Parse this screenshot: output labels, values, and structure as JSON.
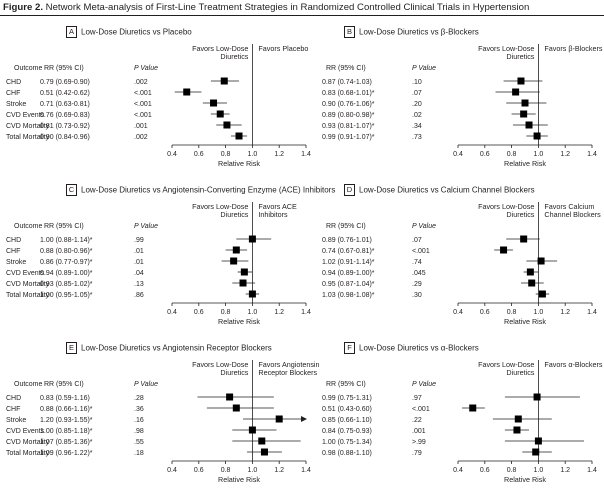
{
  "figure": {
    "label": "Figure 2.",
    "title": "Network Meta-analysis of First-Line Treatment Strategies in Randomized Controlled Clinical Trials in Hypertension"
  },
  "colors": {
    "ink": "#231f20",
    "marker": "#000000"
  },
  "chart_data": [
    {
      "type": "forest",
      "panel": "A",
      "title": "Low-Dose Diuretics vs Placebo",
      "favors_left": "Favors Low-Dose Diuretics",
      "favors_right": "Favors Placebo",
      "show_outcome_column": true,
      "outcome_header": "Outcome",
      "rr_header": "RR (95% CI)",
      "p_header": "P Value",
      "xlabel": "Relative Risk",
      "xlim": [
        0.4,
        1.4
      ],
      "xticks": [
        "0.4",
        "0.6",
        "0.8",
        "1.0",
        "1.2",
        "1.4"
      ],
      "reference_line": 1.0,
      "rows": [
        {
          "outcome": "CHD",
          "rr_text": "0.79 (0.69-0.90)",
          "p_text": ".002",
          "rr": 0.79,
          "lo": 0.69,
          "hi": 0.9
        },
        {
          "outcome": "CHF",
          "rr_text": "0.51 (0.42-0.62)",
          "p_text": "<.001",
          "rr": 0.51,
          "lo": 0.42,
          "hi": 0.62
        },
        {
          "outcome": "Stroke",
          "rr_text": "0.71 (0.63-0.81)",
          "p_text": "<.001",
          "rr": 0.71,
          "lo": 0.63,
          "hi": 0.81
        },
        {
          "outcome": "CVD Events",
          "rr_text": "0.76 (0.69-0.83)",
          "p_text": "<.001",
          "rr": 0.76,
          "lo": 0.69,
          "hi": 0.83
        },
        {
          "outcome": "CVD Mortality",
          "rr_text": "0.81 (0.73-0.92)",
          "p_text": ".001",
          "rr": 0.81,
          "lo": 0.73,
          "hi": 0.92
        },
        {
          "outcome": "Total Mortality",
          "rr_text": "0.90 (0.84-0.96)",
          "p_text": ".002",
          "rr": 0.9,
          "lo": 0.84,
          "hi": 0.96
        }
      ]
    },
    {
      "type": "forest",
      "panel": "B",
      "title": "Low-Dose Diuretics vs β-Blockers",
      "favors_left": "Favors Low-Dose Diuretics",
      "favors_right": "Favors β-Blockers",
      "show_outcome_column": false,
      "outcome_header": "",
      "rr_header": "RR (95% CI)",
      "p_header": "P Value",
      "xlabel": "Relative Risk",
      "xlim": [
        0.4,
        1.4
      ],
      "xticks": [
        "0.4",
        "0.6",
        "0.8",
        "1.0",
        "1.2",
        "1.4"
      ],
      "reference_line": 1.0,
      "rows": [
        {
          "outcome": "CHD",
          "rr_text": "0.87 (0.74-1.03)",
          "p_text": ".10",
          "rr": 0.87,
          "lo": 0.74,
          "hi": 1.03
        },
        {
          "outcome": "CHF",
          "rr_text": "0.83 (0.68-1.01)*",
          "p_text": ".07",
          "rr": 0.83,
          "lo": 0.68,
          "hi": 1.01
        },
        {
          "outcome": "Stroke",
          "rr_text": "0.90 (0.76-1.06)*",
          "p_text": ".20",
          "rr": 0.9,
          "lo": 0.76,
          "hi": 1.06
        },
        {
          "outcome": "CVD Events",
          "rr_text": "0.89 (0.80-0.98)*",
          "p_text": ".02",
          "rr": 0.89,
          "lo": 0.8,
          "hi": 0.98
        },
        {
          "outcome": "CVD Mortality",
          "rr_text": "0.93 (0.81-1.07)*",
          "p_text": ".34",
          "rr": 0.93,
          "lo": 0.81,
          "hi": 1.07
        },
        {
          "outcome": "Total Mortality",
          "rr_text": "0.99 (0.91-1.07)*",
          "p_text": ".73",
          "rr": 0.99,
          "lo": 0.91,
          "hi": 1.07
        }
      ]
    },
    {
      "type": "forest",
      "panel": "C",
      "title": "Low-Dose Diuretics vs Angiotensin-Converting Enzyme (ACE) Inhibitors",
      "favors_left": "Favors Low-Dose Diuretics",
      "favors_right": "Favors ACE Inhibitors",
      "show_outcome_column": true,
      "outcome_header": "Outcome",
      "rr_header": "RR (95% CI)",
      "p_header": "P Value",
      "xlabel": "Relative Risk",
      "xlim": [
        0.4,
        1.4
      ],
      "xticks": [
        "0.4",
        "0.6",
        "0.8",
        "1.0",
        "1.2",
        "1.4"
      ],
      "reference_line": 1.0,
      "rows": [
        {
          "outcome": "CHD",
          "rr_text": "1.00 (0.88-1.14)*",
          "p_text": ".99",
          "rr": 1.0,
          "lo": 0.88,
          "hi": 1.14
        },
        {
          "outcome": "CHF",
          "rr_text": "0.88 (0.80-0.96)*",
          "p_text": ".01",
          "rr": 0.88,
          "lo": 0.8,
          "hi": 0.96
        },
        {
          "outcome": "Stroke",
          "rr_text": "0.86 (0.77-0.97)*",
          "p_text": ".01",
          "rr": 0.86,
          "lo": 0.77,
          "hi": 0.97
        },
        {
          "outcome": "CVD Events",
          "rr_text": "0.94 (0.89-1.00)*",
          "p_text": ".04",
          "rr": 0.94,
          "lo": 0.89,
          "hi": 1.0
        },
        {
          "outcome": "CVD Mortality",
          "rr_text": "0.93 (0.85-1.02)*",
          "p_text": ".13",
          "rr": 0.93,
          "lo": 0.85,
          "hi": 1.02
        },
        {
          "outcome": "Total Mortality",
          "rr_text": "1.00 (0.95-1.05)*",
          "p_text": ".86",
          "rr": 1.0,
          "lo": 0.95,
          "hi": 1.05
        }
      ]
    },
    {
      "type": "forest",
      "panel": "D",
      "title": "Low-Dose Diuretics vs Calcium Channel Blockers",
      "favors_left": "Favors Low-Dose Diuretics",
      "favors_right": "Favors Calcium Channel Blockers",
      "show_outcome_column": false,
      "outcome_header": "",
      "rr_header": "RR (95% CI)",
      "p_header": "P Value",
      "xlabel": "Relative Risk",
      "xlim": [
        0.4,
        1.4
      ],
      "xticks": [
        "0.4",
        "0.6",
        "0.8",
        "1.0",
        "1.2",
        "1.4"
      ],
      "reference_line": 1.0,
      "rows": [
        {
          "outcome": "CHD",
          "rr_text": "0.89 (0.76-1.01)",
          "p_text": ".07",
          "rr": 0.89,
          "lo": 0.76,
          "hi": 1.01
        },
        {
          "outcome": "CHF",
          "rr_text": "0.74 (0.67-0.81)*",
          "p_text": "<.001",
          "rr": 0.74,
          "lo": 0.67,
          "hi": 0.81
        },
        {
          "outcome": "Stroke",
          "rr_text": "1.02 (0.91-1.14)*",
          "p_text": ".74",
          "rr": 1.02,
          "lo": 0.91,
          "hi": 1.14
        },
        {
          "outcome": "CVD Events",
          "rr_text": "0.94 (0.89-1.00)*",
          "p_text": ".045",
          "rr": 0.94,
          "lo": 0.89,
          "hi": 1.0
        },
        {
          "outcome": "CVD Mortality",
          "rr_text": "0.95 (0.87-1.04)*",
          "p_text": ".29",
          "rr": 0.95,
          "lo": 0.87,
          "hi": 1.04
        },
        {
          "outcome": "Total Mortality",
          "rr_text": "1.03 (0.98-1.08)*",
          "p_text": ".30",
          "rr": 1.03,
          "lo": 0.98,
          "hi": 1.08
        }
      ]
    },
    {
      "type": "forest",
      "panel": "E",
      "title": "Low-Dose Diuretics vs Angiotensin Receptor Blockers",
      "favors_left": "Favors Low-Dose Diuretics",
      "favors_right": "Favors Angiotensin Receptor Blockers",
      "show_outcome_column": true,
      "outcome_header": "Outcome",
      "rr_header": "RR (95% CI)",
      "p_header": "P Value",
      "xlabel": "Relative Risk",
      "xlim": [
        0.4,
        1.4
      ],
      "xticks": [
        "0.4",
        "0.6",
        "0.8",
        "1.0",
        "1.2",
        "1.4"
      ],
      "reference_line": 1.0,
      "rows": [
        {
          "outcome": "CHD",
          "rr_text": "0.83 (0.59-1.16)",
          "p_text": ".28",
          "rr": 0.83,
          "lo": 0.59,
          "hi": 1.16
        },
        {
          "outcome": "CHF",
          "rr_text": "0.88 (0.66-1.16)*",
          "p_text": ".36",
          "rr": 0.88,
          "lo": 0.66,
          "hi": 1.16
        },
        {
          "outcome": "Stroke",
          "rr_text": "1.20 (0.93-1.55)*",
          "p_text": ".16",
          "rr": 1.2,
          "lo": 0.93,
          "hi": 1.55
        },
        {
          "outcome": "CVD Events",
          "rr_text": "1.00 (0.85-1.18)*",
          "p_text": ".98",
          "rr": 1.0,
          "lo": 0.85,
          "hi": 1.18
        },
        {
          "outcome": "CVD Mortality",
          "rr_text": "1.07 (0.85-1.36)*",
          "p_text": ".55",
          "rr": 1.07,
          "lo": 0.85,
          "hi": 1.36
        },
        {
          "outcome": "Total Mortality",
          "rr_text": "1.09 (0.96-1.22)*",
          "p_text": ".18",
          "rr": 1.09,
          "lo": 0.96,
          "hi": 1.22
        }
      ]
    },
    {
      "type": "forest",
      "panel": "F",
      "title": "Low-Dose Diuretics vs α-Blockers",
      "favors_left": "Favors Low-Dose Diuretics",
      "favors_right": "Favors α-Blockers",
      "show_outcome_column": false,
      "outcome_header": "",
      "rr_header": "RR (95% CI)",
      "p_header": "P Value",
      "xlabel": "Relative Risk",
      "xlim": [
        0.4,
        1.4
      ],
      "xticks": [
        "0.4",
        "0.6",
        "0.8",
        "1.0",
        "1.2",
        "1.4"
      ],
      "reference_line": 1.0,
      "rows": [
        {
          "outcome": "CHD",
          "rr_text": "0.99 (0.75-1.31)",
          "p_text": ".97",
          "rr": 0.99,
          "lo": 0.75,
          "hi": 1.31
        },
        {
          "outcome": "CHF",
          "rr_text": "0.51 (0.43-0.60)",
          "p_text": "<.001",
          "rr": 0.51,
          "lo": 0.43,
          "hi": 0.6
        },
        {
          "outcome": "Stroke",
          "rr_text": "0.85 (0.66-1.10)",
          "p_text": ".22",
          "rr": 0.85,
          "lo": 0.66,
          "hi": 1.1
        },
        {
          "outcome": "CVD Events",
          "rr_text": "0.84 (0.75-0.93)",
          "p_text": ".001",
          "rr": 0.84,
          "lo": 0.75,
          "hi": 0.93
        },
        {
          "outcome": "CVD Mortality",
          "rr_text": "1.00 (0.75-1.34)",
          "p_text": ">.99",
          "rr": 1.0,
          "lo": 0.75,
          "hi": 1.34
        },
        {
          "outcome": "Total Mortality",
          "rr_text": "0.98 (0.88-1.10)",
          "p_text": ".79",
          "rr": 0.98,
          "lo": 0.88,
          "hi": 1.1
        }
      ]
    }
  ]
}
